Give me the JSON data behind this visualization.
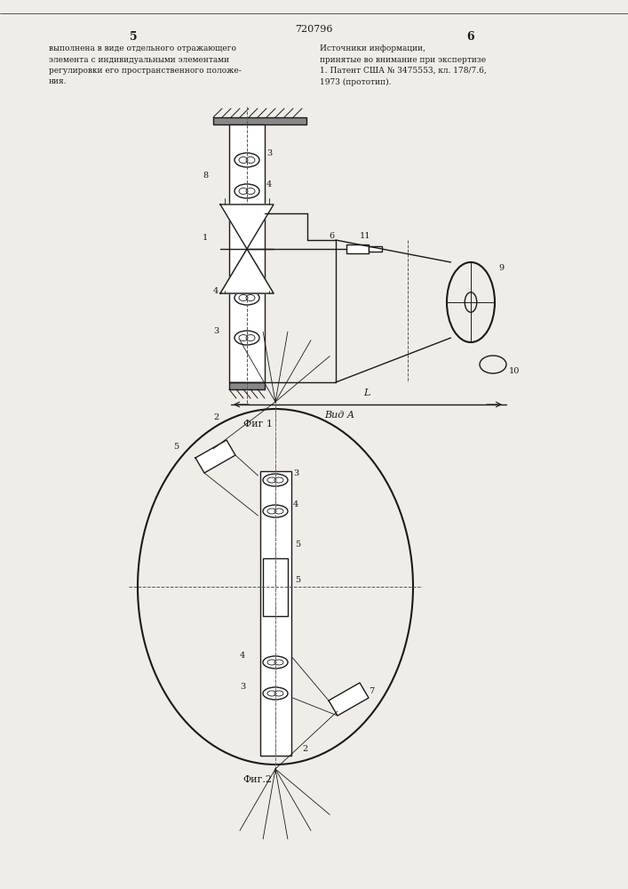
{
  "bg_color": "#f0ede8",
  "line_color": "#1a1a1a",
  "page_num_left": "5",
  "page_num_right": "6",
  "patent_number": "720796",
  "text_left": "выполнена в виде отдельного отражающего\nэлемента с индивидуальными элементами\nрегулировки его пространственного положе-\nния.",
  "text_right": "Источники информации,\nпринятые во внимание при экспертизе\n1. Патент США № 3475553, кл. 178/7.6,\n1973 (прототип).",
  "fig1_caption": "Фиг 1",
  "fig2_caption": "Фиг.2",
  "fig2_label": "Вид А"
}
